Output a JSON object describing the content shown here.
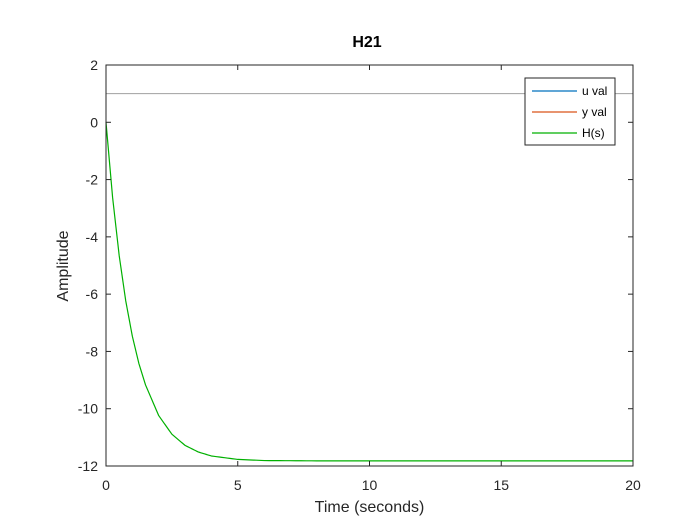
{
  "chart_data": {
    "type": "line",
    "title": "H21",
    "xlabel": "Time (seconds)",
    "ylabel": "Amplitude",
    "xlim": [
      0,
      20
    ],
    "ylim": [
      -12,
      2
    ],
    "xticks": [
      0,
      5,
      10,
      15,
      20
    ],
    "yticks": [
      2,
      0,
      -2,
      -4,
      -6,
      -8,
      -10,
      -12
    ],
    "xtick_labels": [
      "0",
      "5",
      "10",
      "15",
      "20"
    ],
    "ytick_labels": [
      "2",
      "0",
      "-2",
      "-4",
      "-6",
      "-8",
      "-10",
      "-12"
    ],
    "grid": false,
    "legend_position": "top-right",
    "reference_line": {
      "y": 1,
      "color": "#a0a0a0"
    },
    "series": [
      {
        "name": "u val",
        "color": "#0072bd",
        "x": [],
        "y": []
      },
      {
        "name": "y val",
        "color": "#d95319",
        "x": [],
        "y": []
      },
      {
        "name": "H(s)",
        "color": "#00b000",
        "x": [
          0,
          0.25,
          0.5,
          0.75,
          1,
          1.25,
          1.5,
          2,
          2.5,
          3,
          3.5,
          4,
          5,
          6,
          8,
          10,
          15,
          20
        ],
        "y": [
          0,
          -2.62,
          -4.65,
          -6.24,
          -7.47,
          -8.43,
          -9.17,
          -10.24,
          -10.89,
          -11.28,
          -11.51,
          -11.65,
          -11.77,
          -11.81,
          -11.82,
          -11.82,
          -11.82,
          -11.82
        ]
      }
    ]
  }
}
